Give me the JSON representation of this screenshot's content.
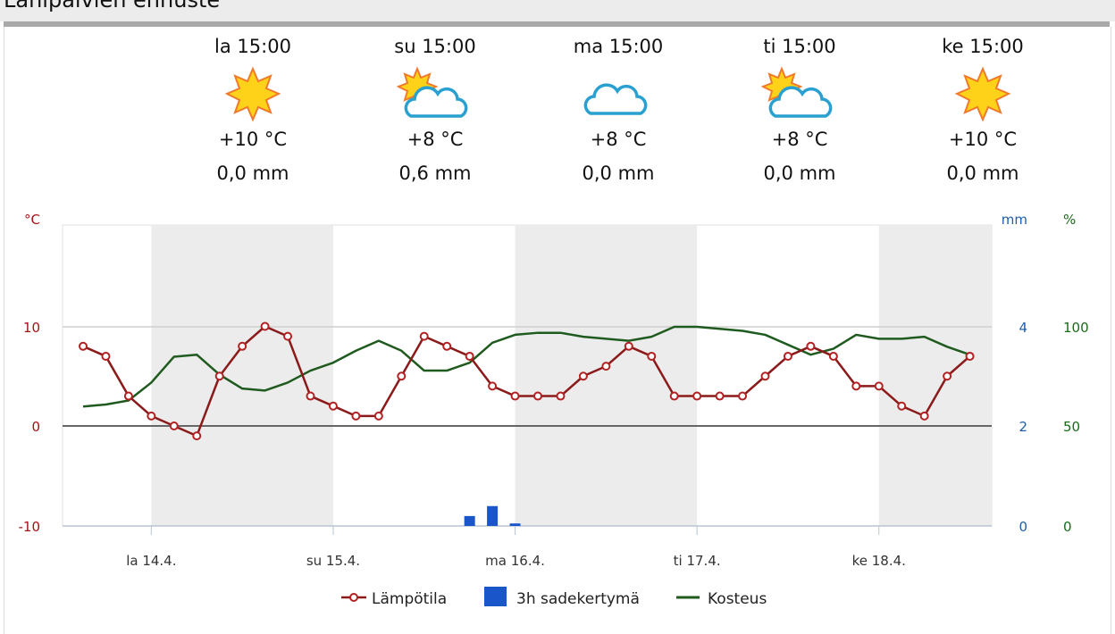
{
  "title": "Lähipäivien ennuste",
  "forecast": [
    {
      "time": "la 15:00",
      "icon": "sun-icon",
      "temp": "+10 °C",
      "precip": "0,0 mm"
    },
    {
      "time": "su 15:00",
      "icon": "sun-cloud-icon",
      "temp": "+8 °C",
      "precip": "0,6 mm"
    },
    {
      "time": "ma 15:00",
      "icon": "cloud-icon",
      "temp": "+8 °C",
      "precip": "0,0 mm"
    },
    {
      "time": "ti 15:00",
      "icon": "sun-cloud-icon",
      "temp": "+8 °C",
      "precip": "0,0 mm"
    },
    {
      "time": "ke 15:00",
      "icon": "sun-icon",
      "temp": "+10 °C",
      "precip": "0,0 mm"
    }
  ],
  "chart_data": {
    "type": "line",
    "title": "",
    "grid": true,
    "legend_position": "bottom",
    "x": [
      "13.4. 15:00",
      "13.4. 18:00",
      "13.4. 21:00",
      "14.4. 00:00",
      "14.4. 03:00",
      "14.4. 06:00",
      "14.4. 09:00",
      "14.4. 12:00",
      "14.4. 15:00",
      "14.4. 18:00",
      "14.4. 21:00",
      "15.4. 00:00",
      "15.4. 03:00",
      "15.4. 06:00",
      "15.4. 09:00",
      "15.4. 12:00",
      "15.4. 15:00",
      "15.4. 18:00",
      "15.4. 21:00",
      "16.4. 00:00",
      "16.4. 03:00",
      "16.4. 06:00",
      "16.4. 09:00",
      "16.4. 12:00",
      "16.4. 15:00",
      "16.4. 18:00",
      "16.4. 21:00",
      "17.4. 00:00",
      "17.4. 03:00",
      "17.4. 06:00",
      "17.4. 09:00",
      "17.4. 12:00",
      "17.4. 15:00",
      "17.4. 18:00",
      "17.4. 21:00",
      "18.4. 00:00",
      "18.4. 03:00",
      "18.4. 06:00",
      "18.4. 09:00",
      "18.4. 12:00"
    ],
    "x_ticks": [
      {
        "at": "14.4. 00:00",
        "label": "la 14.4."
      },
      {
        "at": "15.4. 00:00",
        "label": "su 15.4."
      },
      {
        "at": "16.4. 00:00",
        "label": "ma 16.4."
      },
      {
        "at": "17.4. 00:00",
        "label": "ti 17.4."
      },
      {
        "at": "18.4. 00:00",
        "label": "ke 18.4."
      }
    ],
    "axes": {
      "left": {
        "label": "°C",
        "ticks": [
          "10",
          "0",
          "-10"
        ],
        "range": [
          -10,
          20
        ],
        "color": "#a31515"
      },
      "right_mm": {
        "label": "mm",
        "ticks": [
          "4",
          "2",
          "0"
        ],
        "range": [
          0,
          6
        ],
        "color": "#1f5fa8"
      },
      "right_pct": {
        "label": "%",
        "ticks": [
          "100",
          "50",
          "0"
        ],
        "range": [
          0,
          150
        ],
        "color": "#1a6b1a"
      }
    },
    "series": [
      {
        "name": "Lämpötila",
        "type": "line",
        "axis": "left",
        "color": "#a31515",
        "values": [
          8,
          7,
          3,
          1,
          0,
          -1,
          5,
          8,
          10,
          9,
          3,
          2,
          1,
          1,
          5,
          9,
          8,
          7,
          4,
          3,
          3,
          3,
          5,
          6,
          8,
          7,
          3,
          3,
          3,
          3,
          5,
          7,
          8,
          7,
          4,
          4,
          2,
          1,
          5,
          7
        ]
      },
      {
        "name": "3h sadekertymä",
        "type": "bar",
        "axis": "right_mm",
        "color": "#1a56c9",
        "values": [
          0,
          0,
          0,
          0,
          0,
          0,
          0,
          0,
          0,
          0,
          0,
          0,
          0,
          0,
          0,
          0,
          0,
          0.2,
          0.4,
          0.05,
          0,
          0,
          0,
          0,
          0,
          0,
          0,
          0,
          0,
          0,
          0,
          0,
          0,
          0,
          0,
          0,
          0,
          0,
          0,
          0
        ]
      },
      {
        "name": "Kosteus",
        "type": "line",
        "axis": "right_pct",
        "color": "#1f5a1f",
        "values": [
          60,
          61,
          63,
          72,
          85,
          86,
          76,
          69,
          68,
          72,
          78,
          82,
          88,
          93,
          88,
          78,
          78,
          82,
          92,
          96,
          97,
          97,
          95,
          94,
          93,
          95,
          100,
          100,
          99,
          98,
          96,
          91,
          86,
          89,
          96,
          94,
          94,
          95,
          90,
          86
        ]
      }
    ]
  }
}
